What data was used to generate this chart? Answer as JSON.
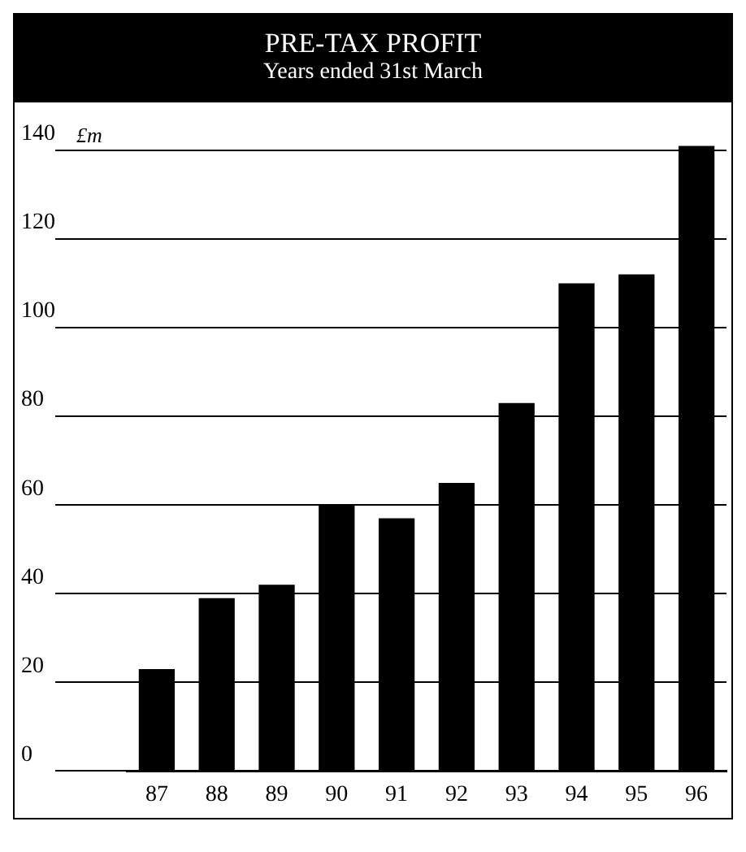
{
  "chart_data": {
    "type": "bar",
    "title": "PRE-TAX PROFIT",
    "subtitle": "Years ended 31st March",
    "ylabel": "£m",
    "categories": [
      "87",
      "88",
      "89",
      "90",
      "91",
      "92",
      "93",
      "94",
      "95",
      "96"
    ],
    "values": [
      23,
      39,
      42,
      60,
      57,
      65,
      83,
      110,
      112,
      141
    ],
    "color": "#000000",
    "ylim": [
      0,
      142
    ],
    "yticks": [
      0,
      20,
      40,
      60,
      80,
      100,
      120,
      140
    ],
    "grid": "y"
  }
}
